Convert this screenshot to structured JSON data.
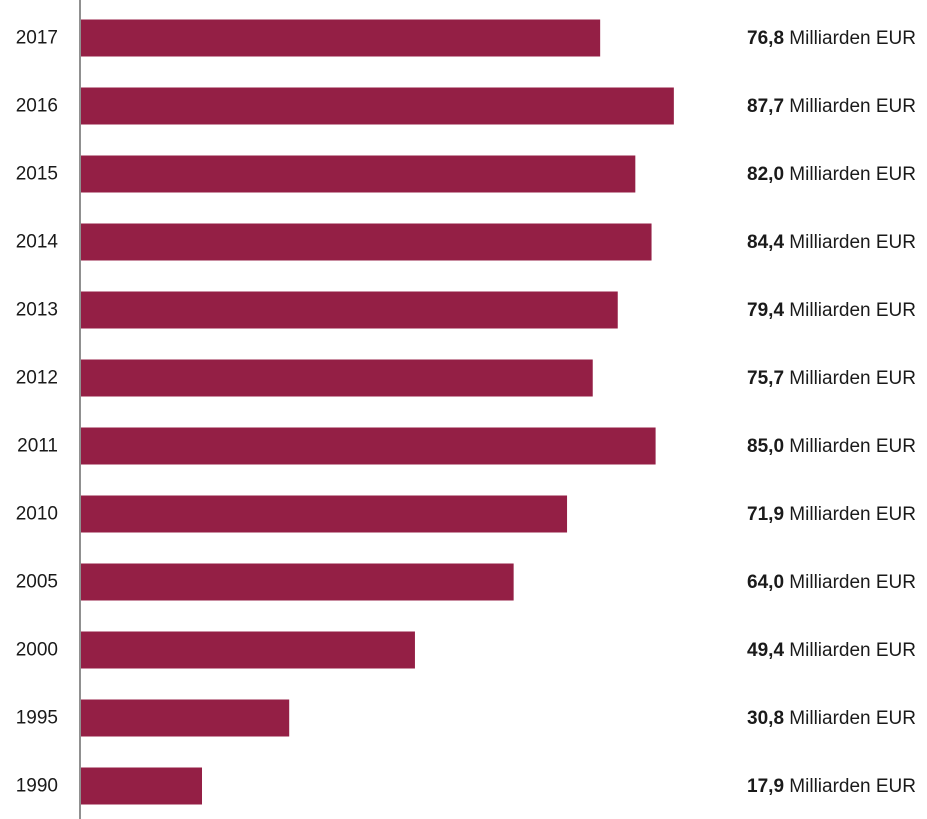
{
  "colors": {
    "bar": "#941f45",
    "axis": "#555555",
    "text": "#1a1a1a"
  },
  "chart_data": {
    "type": "bar",
    "orientation": "horizontal",
    "categories": [
      "2017",
      "2016",
      "2015",
      "2014",
      "2013",
      "2012",
      "2011",
      "2010",
      "2005",
      "2000",
      "1995",
      "1990"
    ],
    "values": [
      76.8,
      87.7,
      82.0,
      84.4,
      79.4,
      75.7,
      85.0,
      71.9,
      64.0,
      49.4,
      30.8,
      17.9
    ],
    "value_labels": [
      "76,8",
      "87,7",
      "82,0",
      "84,4",
      "79,4",
      "75,7",
      "85,0",
      "71,9",
      "64,0",
      "49,4",
      "30,8",
      "17,9"
    ],
    "unit": "Milliarden EUR",
    "xlim": [
      0,
      100
    ],
    "grid": false,
    "legend": "none"
  }
}
